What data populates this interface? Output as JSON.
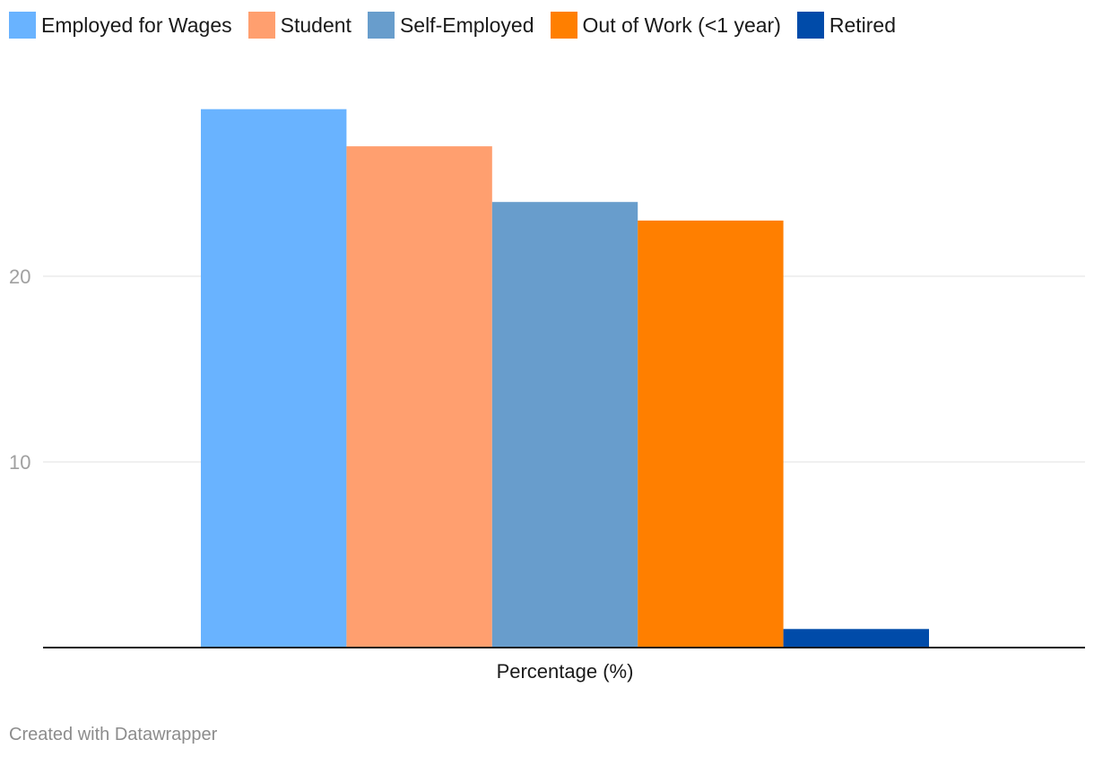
{
  "chart_data": {
    "type": "bar",
    "categories": [
      "Percentage (%)"
    ],
    "series": [
      {
        "name": "Employed for Wages",
        "values": [
          29
        ],
        "color": "#69b3ff"
      },
      {
        "name": "Student",
        "values": [
          27
        ],
        "color": "#ff9f6f"
      },
      {
        "name": "Self-Employed",
        "values": [
          24
        ],
        "color": "#689dcc"
      },
      {
        "name": "Out of Work (<1 year)",
        "values": [
          23
        ],
        "color": "#ff7f00"
      },
      {
        "name": "Retired",
        "values": [
          1
        ],
        "color": "#004ba9"
      }
    ],
    "yticks": [
      10,
      20
    ],
    "ylim": [
      0,
      30
    ],
    "xlabel": "Percentage (%)",
    "grid": true,
    "legend": "top-left"
  },
  "credit": "Created with Datawrapper"
}
